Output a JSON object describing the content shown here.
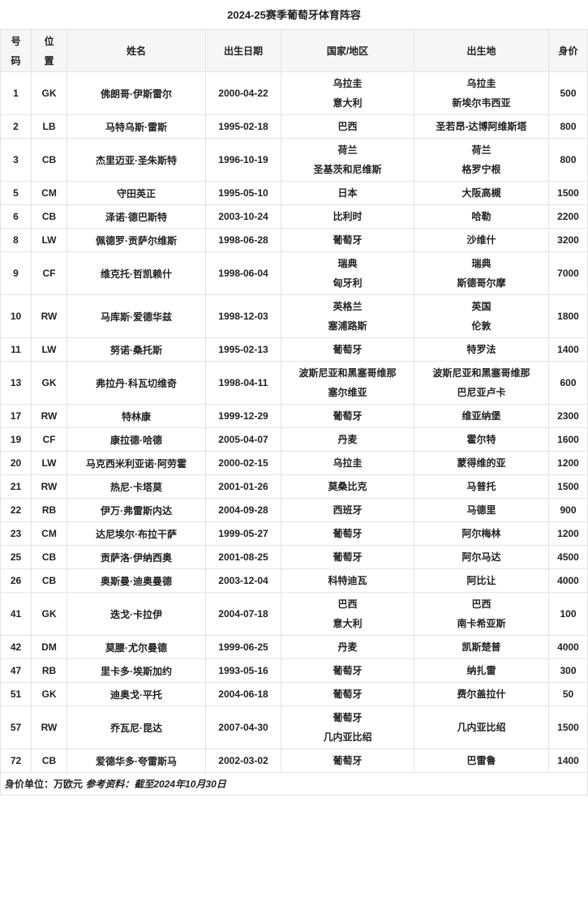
{
  "title": "2024-25赛季葡萄牙体育阵容",
  "headers": [
    [
      "号",
      "码"
    ],
    [
      "位",
      "置"
    ],
    [
      "姓名"
    ],
    [
      "出生日期"
    ],
    [
      "国家/地区"
    ],
    [
      "出生地"
    ],
    [
      "身价"
    ]
  ],
  "rows": [
    {
      "no": "1",
      "pos": "GK",
      "name": "佛朗哥·伊斯雷尔",
      "dob": "2000-04-22",
      "nation": [
        "乌拉圭",
        "意大利"
      ],
      "birthplace": [
        "乌拉圭",
        "新埃尔韦西亚"
      ],
      "value": "500"
    },
    {
      "no": "2",
      "pos": "LB",
      "name": "马特乌斯·雷斯",
      "dob": "1995-02-18",
      "nation": [
        "巴西"
      ],
      "birthplace": [
        "圣若昂-达博阿维斯塔"
      ],
      "value": "800"
    },
    {
      "no": "3",
      "pos": "CB",
      "name": "杰里迈亚·圣朱斯特",
      "dob": "1996-10-19",
      "nation": [
        "荷兰",
        "圣基茨和尼维斯"
      ],
      "birthplace": [
        "荷兰",
        "格罗宁根"
      ],
      "value": "800"
    },
    {
      "no": "5",
      "pos": "CM",
      "name": "守田英正",
      "dob": "1995-05-10",
      "nation": [
        "日本"
      ],
      "birthplace": [
        "大阪高槻"
      ],
      "value": "1500"
    },
    {
      "no": "6",
      "pos": "CB",
      "name": "泽诺·德巴斯特",
      "dob": "2003-10-24",
      "nation": [
        "比利时"
      ],
      "birthplace": [
        "哈勒"
      ],
      "value": "2200"
    },
    {
      "no": "8",
      "pos": "LW",
      "name": "佩德罗·贡萨尔维斯",
      "dob": "1998-06-28",
      "nation": [
        "葡萄牙"
      ],
      "birthplace": [
        "沙维什"
      ],
      "value": "3200"
    },
    {
      "no": "9",
      "pos": "CF",
      "name": "维克托·哲凯赖什",
      "dob": "1998-06-04",
      "nation": [
        "瑞典",
        "匈牙利"
      ],
      "birthplace": [
        "瑞典",
        "斯德哥尔摩"
      ],
      "value": "7000"
    },
    {
      "no": "10",
      "pos": "RW",
      "name": "马库斯·爱德华兹",
      "dob": "1998-12-03",
      "nation": [
        "英格兰",
        "塞浦路斯"
      ],
      "birthplace": [
        "英国",
        "伦敦"
      ],
      "value": "1800"
    },
    {
      "no": "11",
      "pos": "LW",
      "name": "努诺·桑托斯",
      "dob": "1995-02-13",
      "nation": [
        "葡萄牙"
      ],
      "birthplace": [
        "特罗法"
      ],
      "value": "1400"
    },
    {
      "no": "13",
      "pos": "GK",
      "name": "弗拉丹·科瓦切维奇",
      "dob": "1998-04-11",
      "nation": [
        "波斯尼亚和黑塞哥维那",
        "塞尔维亚"
      ],
      "birthplace": [
        "波斯尼亚和黑塞哥维那",
        "巴尼亚卢卡"
      ],
      "value": "600"
    },
    {
      "no": "17",
      "pos": "RW",
      "name": "特林康",
      "dob": "1999-12-29",
      "nation": [
        "葡萄牙"
      ],
      "birthplace": [
        "维亚纳堡"
      ],
      "value": "2300"
    },
    {
      "no": "19",
      "pos": "CF",
      "name": "康拉德·哈德",
      "dob": "2005-04-07",
      "nation": [
        "丹麦"
      ],
      "birthplace": [
        "霍尔特"
      ],
      "value": "1600"
    },
    {
      "no": "20",
      "pos": "LW",
      "name": "马克西米利亚诺·阿劳霍",
      "dob": "2000-02-15",
      "nation": [
        "乌拉圭"
      ],
      "birthplace": [
        "蒙得维的亚"
      ],
      "value": "1200"
    },
    {
      "no": "21",
      "pos": "RW",
      "name": "热尼·卡塔莫",
      "dob": "2001-01-26",
      "nation": [
        "莫桑比克"
      ],
      "birthplace": [
        "马普托"
      ],
      "value": "1500"
    },
    {
      "no": "22",
      "pos": "RB",
      "name": "伊万·弗雷斯内达",
      "dob": "2004-09-28",
      "nation": [
        "西班牙"
      ],
      "birthplace": [
        "马德里"
      ],
      "value": "900"
    },
    {
      "no": "23",
      "pos": "CM",
      "name": "达尼埃尔·布拉干萨",
      "dob": "1999-05-27",
      "nation": [
        "葡萄牙"
      ],
      "birthplace": [
        "阿尔梅林"
      ],
      "value": "1200"
    },
    {
      "no": "25",
      "pos": "CB",
      "name": "贡萨洛·伊纳西奥",
      "dob": "2001-08-25",
      "nation": [
        "葡萄牙"
      ],
      "birthplace": [
        "阿尔马达"
      ],
      "value": "4500"
    },
    {
      "no": "26",
      "pos": "CB",
      "name": "奥斯曼·迪奥曼德",
      "dob": "2003-12-04",
      "nation": [
        "科特迪瓦"
      ],
      "birthplace": [
        "阿比让"
      ],
      "value": "4000"
    },
    {
      "no": "41",
      "pos": "GK",
      "name": "迭戈·卡拉伊",
      "dob": "2004-07-18",
      "nation": [
        "巴西",
        "意大利"
      ],
      "birthplace": [
        "巴西",
        "南卡希亚斯"
      ],
      "value": "100"
    },
    {
      "no": "42",
      "pos": "DM",
      "name": "莫腰·尤尔曼德",
      "dob": "1999-06-25",
      "nation": [
        "丹麦"
      ],
      "birthplace": [
        "凯斯楚普"
      ],
      "value": "4000"
    },
    {
      "no": "47",
      "pos": "RB",
      "name": "里卡多·埃斯加约",
      "dob": "1993-05-16",
      "nation": [
        "葡萄牙"
      ],
      "birthplace": [
        "纳扎雷"
      ],
      "value": "300"
    },
    {
      "no": "51",
      "pos": "GK",
      "name": "迪奥戈·平托",
      "dob": "2004-06-18",
      "nation": [
        "葡萄牙"
      ],
      "birthplace": [
        "费尔盖拉什"
      ],
      "value": "50"
    },
    {
      "no": "57",
      "pos": "RW",
      "name": "乔瓦尼·昆达",
      "dob": "2007-04-30",
      "nation": [
        "葡萄牙",
        "几内亚比绍"
      ],
      "birthplace": [
        "几内亚比绍"
      ],
      "value": "1500"
    },
    {
      "no": "72",
      "pos": "CB",
      "name": "爱德华多·夸雷斯马",
      "dob": "2002-03-02",
      "nation": [
        "葡萄牙"
      ],
      "birthplace": [
        "巴雷鲁"
      ],
      "value": "1400"
    }
  ],
  "footer": {
    "unit": "身价单位：万欧元",
    "source": "参考资料：截至2024年10月30日"
  }
}
